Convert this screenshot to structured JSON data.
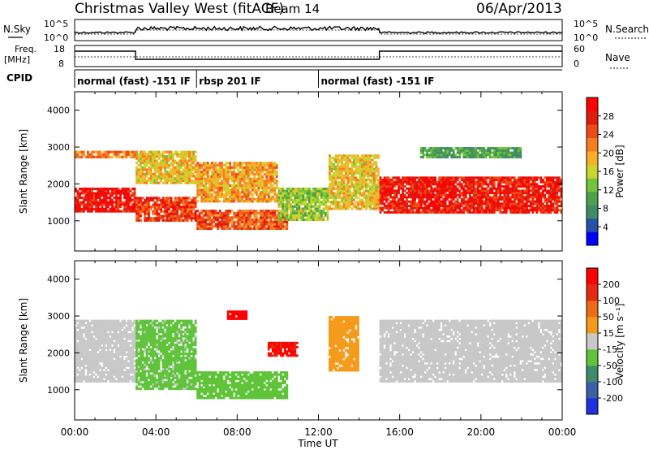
{
  "header": {
    "station": "Christmas Valley West (fitACF)",
    "beam": "Beam 14",
    "date": "06/Apr/2013"
  },
  "nsky_panel": {
    "left_label": "N.Sky",
    "right_label": "N.Search",
    "left_ticks": [
      "10^5",
      "10^0"
    ],
    "right_ticks": [
      "10^5",
      "10^0"
    ]
  },
  "freq_panel": {
    "left_label_1": "Freq.",
    "left_label_2": "[MHz]",
    "right_label": "Nave",
    "left_ticks": [
      "18",
      "8"
    ],
    "right_ticks": [
      "60",
      "0"
    ]
  },
  "cpid": {
    "label": "CPID",
    "modes": [
      {
        "label": "normal (fast) -151 IF",
        "start": 0,
        "end": 6
      },
      {
        "label": "rbsp 201 IF",
        "start": 6,
        "end": 12
      },
      {
        "label": "normal (fast) -151 IF",
        "start": 12,
        "end": 24
      }
    ]
  },
  "chart_data": [
    {
      "type": "heatmap",
      "quantity": "power",
      "ylabel": "Slant Range [km]",
      "xlabel": "Time UT",
      "x_ticks": [
        "00:00",
        "04:00",
        "08:00",
        "12:00",
        "16:00",
        "20:00",
        "00:00"
      ],
      "xlim": [
        0,
        24
      ],
      "ylim": [
        180,
        4500
      ],
      "y_ticks": [
        1000,
        2000,
        3000,
        4000
      ],
      "colorbar": {
        "label": "Power [dB]",
        "ticks": [
          "4",
          "8",
          "12",
          "16",
          "20",
          "24",
          "28"
        ],
        "range": [
          0,
          32
        ],
        "colors": [
          "#0000ff",
          "#2a4fa6",
          "#3f8a6a",
          "#4ea14a",
          "#74c43b",
          "#c8d62e",
          "#f8b02a",
          "#f57e20",
          "#ee4a16",
          "#e01b10",
          "#ff0000"
        ]
      },
      "regions": [
        {
          "t": [
            0.0,
            3.0
          ],
          "r": [
            1230,
            1900
          ],
          "p": 29
        },
        {
          "t": [
            0.0,
            3.0
          ],
          "r": [
            2700,
            2900
          ],
          "p": 22
        },
        {
          "t": [
            3.0,
            6.0
          ],
          "r": [
            980,
            1650
          ],
          "p": 26
        },
        {
          "t": [
            3.0,
            6.0
          ],
          "r": [
            2000,
            2900
          ],
          "p": 18
        },
        {
          "t": [
            6.0,
            10.5
          ],
          "r": [
            760,
            1300
          ],
          "p": 24
        },
        {
          "t": [
            6.0,
            10.0
          ],
          "r": [
            1500,
            2600
          ],
          "p": 20
        },
        {
          "t": [
            10.0,
            12.5
          ],
          "r": [
            1000,
            1900
          ],
          "p": 14
        },
        {
          "t": [
            12.5,
            15.0
          ],
          "r": [
            1300,
            2800
          ],
          "p": 18
        },
        {
          "t": [
            15.0,
            24.0
          ],
          "r": [
            1200,
            2200
          ],
          "p": 28
        },
        {
          "t": [
            17.0,
            22.0
          ],
          "r": [
            2700,
            3000
          ],
          "p": 10
        }
      ]
    },
    {
      "type": "heatmap",
      "quantity": "velocity",
      "ylabel": "Slant Range [km]",
      "xlabel": "Time UT",
      "x_ticks": [
        "00:00",
        "04:00",
        "08:00",
        "12:00",
        "16:00",
        "20:00",
        "00:00"
      ],
      "xlim": [
        0,
        24
      ],
      "ylim": [
        180,
        4500
      ],
      "y_ticks": [
        1000,
        2000,
        3000,
        4000
      ],
      "colorbar": {
        "label": "Velocity [m s⁻¹]",
        "ticks": [
          "200",
          "100",
          "50",
          "15",
          "-15",
          "-50",
          "-100",
          "-200"
        ],
        "range": [
          -250,
          250
        ],
        "colors": [
          "#2030e0",
          "#3c5fa8",
          "#3f8a6a",
          "#5fc43a",
          "#c8c8c8",
          "#f59a1a",
          "#ef6a14",
          "#e62a10",
          "#ff0000"
        ]
      },
      "regions": [
        {
          "t": [
            0.0,
            3.0
          ],
          "r": [
            1200,
            2900
          ],
          "v": 0
        },
        {
          "t": [
            3.0,
            6.0
          ],
          "r": [
            1000,
            2900
          ],
          "v": -40
        },
        {
          "t": [
            6.0,
            10.5
          ],
          "r": [
            750,
            1500
          ],
          "v": -60
        },
        {
          "t": [
            7.5,
            8.5
          ],
          "r": [
            2900,
            3150
          ],
          "v": 220
        },
        {
          "t": [
            9.5,
            11.0
          ],
          "r": [
            1900,
            2300
          ],
          "v": 200
        },
        {
          "t": [
            12.5,
            14.0
          ],
          "r": [
            1500,
            3000
          ],
          "v": 60
        },
        {
          "t": [
            15.0,
            24.0
          ],
          "r": [
            1200,
            2900
          ],
          "v": 0
        }
      ]
    }
  ]
}
